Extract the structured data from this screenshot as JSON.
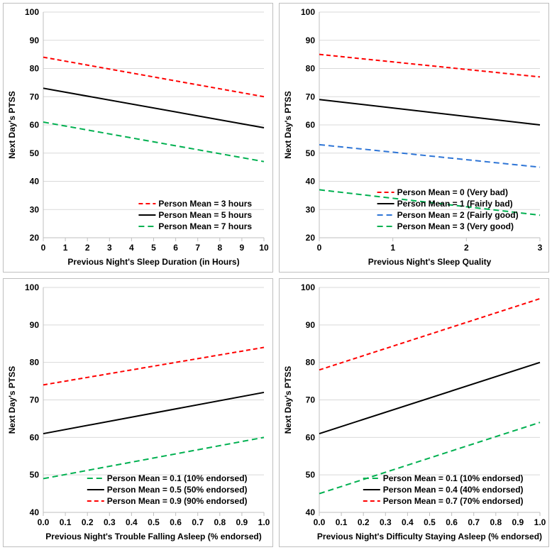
{
  "panels": [
    {
      "id": "tl",
      "xlabel": "Previous Night's Sleep Duration (in Hours)",
      "ylabel": "Next Day's PTSS",
      "xlim": [
        0,
        10
      ],
      "ylim": [
        20,
        100
      ],
      "xticks": [
        0,
        1,
        2,
        3,
        4,
        5,
        6,
        7,
        8,
        9,
        10
      ],
      "yticks": [
        20,
        30,
        40,
        50,
        60,
        70,
        80,
        90,
        100
      ],
      "series": [
        {
          "label": "Person Mean = 3 hours",
          "color": "#ff0000",
          "dash": "6,4",
          "width": 2,
          "points": [
            [
              0,
              84
            ],
            [
              10,
              70
            ]
          ]
        },
        {
          "label": "Person Mean = 5 hours",
          "color": "#000000",
          "dash": "",
          "width": 2,
          "points": [
            [
              0,
              73
            ],
            [
              10,
              59
            ]
          ]
        },
        {
          "label": "Person Mean = 7 hours",
          "color": "#00b050",
          "dash": "8,5",
          "width": 2,
          "points": [
            [
              0,
              61
            ],
            [
              10,
              47
            ]
          ]
        }
      ],
      "legend_pos": "br",
      "legend_order": [
        0,
        1,
        2
      ]
    },
    {
      "id": "tr",
      "xlabel": "Previous Night's Sleep Quality",
      "ylabel": "Next Day's PTSS",
      "xlim": [
        0,
        3
      ],
      "ylim": [
        20,
        100
      ],
      "xticks": [
        0,
        1,
        2,
        3
      ],
      "yticks": [
        20,
        30,
        40,
        50,
        60,
        70,
        80,
        90,
        100
      ],
      "series": [
        {
          "label": "Person Mean = 0 (Very bad)",
          "color": "#ff0000",
          "dash": "6,4",
          "width": 2,
          "points": [
            [
              0,
              85
            ],
            [
              3,
              77
            ]
          ]
        },
        {
          "label": "Person Mean = 1 (Fairly bad)",
          "color": "#000000",
          "dash": "",
          "width": 2,
          "points": [
            [
              0,
              69
            ],
            [
              3,
              60
            ]
          ]
        },
        {
          "label": "Person Mean = 2 (Fairly good)",
          "color": "#2e75d6",
          "dash": "8,5",
          "width": 2,
          "points": [
            [
              0,
              53
            ],
            [
              3,
              45
            ]
          ]
        },
        {
          "label": "Person Mean = 3 (Very good)",
          "color": "#00b050",
          "dash": "8,5",
          "width": 2,
          "points": [
            [
              0,
              37
            ],
            [
              3,
              28
            ]
          ]
        }
      ],
      "legend_pos": "br",
      "legend_order": [
        0,
        1,
        2,
        3
      ]
    },
    {
      "id": "bl",
      "xlabel": "Previous Night's Trouble Falling Asleep (% endorsed)",
      "ylabel": "Next Day's PTSS",
      "xlim": [
        0,
        1
      ],
      "ylim": [
        40,
        100
      ],
      "xticks": [
        0.0,
        0.1,
        0.2,
        0.3,
        0.4,
        0.5,
        0.6,
        0.7,
        0.8,
        0.9,
        1.0
      ],
      "yticks": [
        40,
        50,
        60,
        70,
        80,
        90,
        100
      ],
      "series": [
        {
          "label": "Person Mean = 0.1 (10% endorsed)",
          "color": "#00b050",
          "dash": "8,5",
          "width": 2,
          "points": [
            [
              0,
              49
            ],
            [
              1,
              60
            ]
          ]
        },
        {
          "label": "Person Mean = 0.5 (50% endorsed)",
          "color": "#000000",
          "dash": "",
          "width": 2,
          "points": [
            [
              0,
              61
            ],
            [
              1,
              72
            ]
          ]
        },
        {
          "label": "Person Mean = 0.9 (90% endorsed)",
          "color": "#ff0000",
          "dash": "6,4",
          "width": 2,
          "points": [
            [
              0,
              74
            ],
            [
              1,
              84
            ]
          ]
        }
      ],
      "legend_pos": "br",
      "legend_order": [
        0,
        1,
        2
      ]
    },
    {
      "id": "br",
      "xlabel": "Previous Night's Difficulty Staying Asleep (% endorsed)",
      "ylabel": "Next Day's PTSS",
      "xlim": [
        0,
        1
      ],
      "ylim": [
        40,
        100
      ],
      "xticks": [
        0.0,
        0.1,
        0.2,
        0.3,
        0.4,
        0.5,
        0.6,
        0.7,
        0.8,
        0.9,
        1.0
      ],
      "yticks": [
        40,
        50,
        60,
        70,
        80,
        90,
        100
      ],
      "series": [
        {
          "label": "Person Mean = 0.1 (10% endorsed)",
          "color": "#00b050",
          "dash": "8,5",
          "width": 2,
          "points": [
            [
              0,
              45
            ],
            [
              1,
              64
            ]
          ]
        },
        {
          "label": "Person Mean = 0.4 (40% endorsed)",
          "color": "#000000",
          "dash": "",
          "width": 2,
          "points": [
            [
              0,
              61
            ],
            [
              1,
              80
            ]
          ]
        },
        {
          "label": "Person Mean = 0.7 (70% endorsed)",
          "color": "#ff0000",
          "dash": "6,4",
          "width": 2,
          "points": [
            [
              0,
              78
            ],
            [
              1,
              97
            ]
          ]
        }
      ],
      "legend_pos": "br",
      "legend_order": [
        0,
        1,
        2
      ]
    }
  ],
  "style": {
    "background": "#ffffff",
    "grid_color": "#d9d9d9",
    "axis_color": "#bfbfbf",
    "tick_fontsize": 12,
    "label_fontsize": 12,
    "legend_fontsize": 12,
    "font_weight": "bold"
  }
}
